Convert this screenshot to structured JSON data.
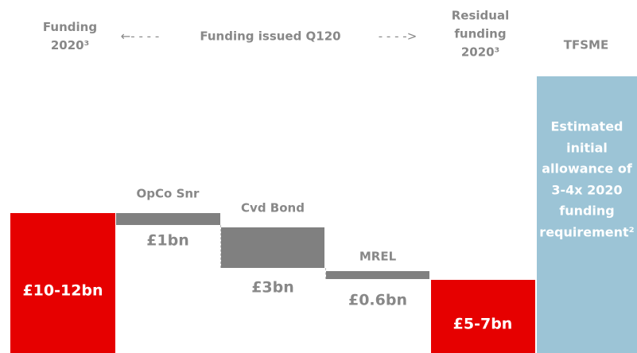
{
  "header": {
    "funding_2020": [
      "Funding",
      "2020³"
    ],
    "left_arrow": "←- - - -",
    "funding_issued": "Funding  issued Q120",
    "right_arrow": "- - - ->",
    "residual_funding": [
      "Residual",
      "funding",
      "2020³"
    ],
    "tfsme": "TFSME"
  },
  "bars": {
    "funding_2020": "£10-12bn",
    "opco_snr": {
      "name": "OpCo Snr",
      "amount": "£1bn"
    },
    "cvd_bond": {
      "name": "Cvd Bond",
      "amount": "£3bn"
    },
    "mrel": {
      "name": "MREL",
      "amount": "£0.6bn"
    },
    "residual": "£5-7bn",
    "tfsme": [
      "Estimated",
      "initial",
      "allowance of",
      "3-4x 2020",
      "funding",
      "requirement²"
    ]
  }
}
